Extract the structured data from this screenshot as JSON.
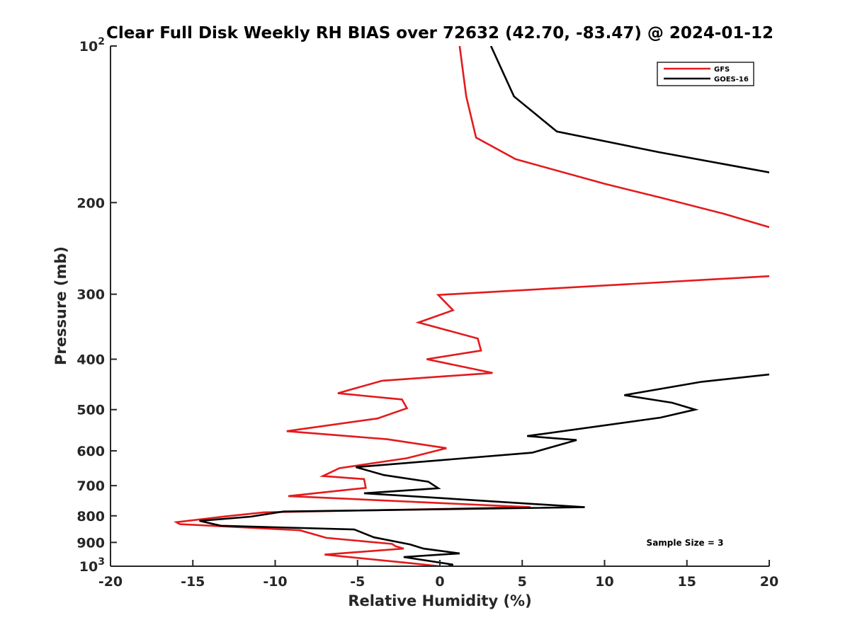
{
  "chart_data": {
    "type": "line",
    "title": "Clear Full Disk Weekly RH BIAS over 72632 (42.70, -83.47) @ 2024-01-12",
    "xlabel": "Relative Humidity (%)",
    "ylabel": "Pressure (mb)",
    "xlim": [
      -20,
      20
    ],
    "ylim": [
      100,
      1000
    ],
    "y_scale": "log",
    "y_reversed": true,
    "grid": false,
    "legend_placement": "top-right",
    "x_ticks": [
      "-20",
      "-15",
      "-10",
      "-5",
      "0",
      "5",
      "10",
      "15",
      "20"
    ],
    "x_tick_values": [
      -20,
      -15,
      -10,
      -5,
      0,
      5,
      10,
      15,
      20
    ],
    "y_ticks": [
      {
        "value": 100,
        "base": "10",
        "exp": "2"
      },
      {
        "value": 200,
        "base": "200",
        "exp": ""
      },
      {
        "value": 300,
        "base": "300",
        "exp": ""
      },
      {
        "value": 400,
        "base": "400",
        "exp": ""
      },
      {
        "value": 500,
        "base": "500",
        "exp": ""
      },
      {
        "value": 600,
        "base": "600",
        "exp": ""
      },
      {
        "value": 700,
        "base": "700",
        "exp": ""
      },
      {
        "value": 800,
        "base": "800",
        "exp": ""
      },
      {
        "value": 900,
        "base": "900",
        "exp": ""
      },
      {
        "value": 1000,
        "base": "10",
        "exp": "3"
      }
    ],
    "annotation": "Sample Size = 3",
    "series": [
      {
        "name": "GFS",
        "color": "#e41a1c",
        "points": [
          [
            1.2,
            100
          ],
          [
            1.6,
            125
          ],
          [
            2.2,
            150
          ],
          [
            4.6,
            165
          ],
          [
            10.0,
            184
          ],
          [
            13.5,
            196
          ],
          [
            17.2,
            210
          ],
          [
            20.0,
            223
          ],
          [
            null,
            250
          ],
          [
            20.0,
            277
          ],
          [
            -0.1,
            301
          ],
          [
            0.8,
            322
          ],
          [
            -1.3,
            340
          ],
          [
            2.3,
            365
          ],
          [
            2.5,
            385
          ],
          [
            -0.8,
            400
          ],
          [
            3.2,
            425
          ],
          [
            -3.5,
            440
          ],
          [
            -6.2,
            465
          ],
          [
            -2.3,
            478
          ],
          [
            -2.0,
            497
          ],
          [
            -3.8,
            520
          ],
          [
            -9.3,
            550
          ],
          [
            -3.2,
            570
          ],
          [
            0.4,
            593
          ],
          [
            -2.0,
            620
          ],
          [
            -6.1,
            648
          ],
          [
            -7.1,
            671
          ],
          [
            -4.6,
            680
          ],
          [
            -4.5,
            707
          ],
          [
            -9.2,
            733
          ],
          [
            5.5,
            770
          ],
          [
            -10.7,
            788
          ],
          [
            -13.0,
            802
          ],
          [
            -16.0,
            823
          ],
          [
            -15.8,
            830
          ],
          [
            -8.5,
            853
          ],
          [
            -6.9,
            882
          ],
          [
            -2.9,
            906
          ],
          [
            -2.7,
            915
          ],
          [
            -2.2,
            925
          ],
          [
            -7.0,
            950
          ],
          [
            -2.0,
            985
          ],
          [
            0.0,
            1000
          ]
        ]
      },
      {
        "name": "GOES-16",
        "color": "#000000",
        "points": [
          [
            3.1,
            100
          ],
          [
            4.5,
            125
          ],
          [
            7.1,
            146
          ],
          [
            13.3,
            160
          ],
          [
            20.0,
            175
          ],
          [
            null,
            330
          ],
          [
            20.0,
            428
          ],
          [
            15.9,
            442
          ],
          [
            11.2,
            469
          ],
          [
            14.1,
            485
          ],
          [
            15.5,
            500
          ],
          [
            13.4,
            518
          ],
          [
            5.3,
            562
          ],
          [
            8.3,
            572
          ],
          [
            5.6,
            605
          ],
          [
            -5.1,
            645
          ],
          [
            -3.4,
            668
          ],
          [
            -0.7,
            688
          ],
          [
            -0.1,
            708
          ],
          [
            -4.6,
            724
          ],
          [
            8.8,
            770
          ],
          [
            -9.5,
            785
          ],
          [
            -11.5,
            803
          ],
          [
            -14.6,
            818
          ],
          [
            -13.3,
            836
          ],
          [
            -5.2,
            850
          ],
          [
            -4.0,
            880
          ],
          [
            -1.8,
            908
          ],
          [
            -1.0,
            925
          ],
          [
            1.2,
            945
          ],
          [
            -2.2,
            960
          ],
          [
            0.8,
            993
          ],
          [
            0.5,
            1000
          ]
        ]
      }
    ]
  }
}
